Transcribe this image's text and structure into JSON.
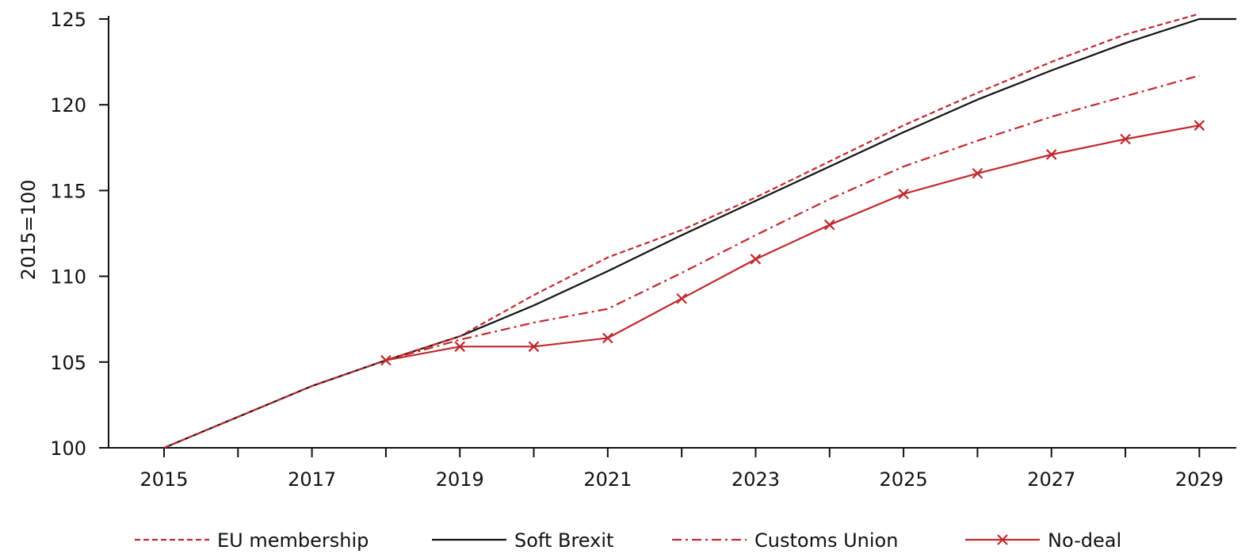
{
  "chart_data": {
    "type": "line",
    "title": "",
    "xlabel": "",
    "ylabel": "2015=100",
    "x_ticks": [
      2015,
      2017,
      2019,
      2021,
      2023,
      2025,
      2027,
      2029
    ],
    "x_tick_labels": [
      "2015",
      "2017",
      "2019",
      "2021",
      "2023",
      "2025",
      "2027",
      "2029"
    ],
    "y_ticks": [
      100,
      105,
      110,
      115,
      120,
      125
    ],
    "y_tick_labels": [
      "100",
      "105",
      "110",
      "115",
      "120",
      "125"
    ],
    "xlim": [
      2014.25,
      2029.5
    ],
    "ylim": [
      100,
      125
    ],
    "grid": false,
    "legend_position": "bottom",
    "series": [
      {
        "name": "EU membership",
        "color": "#c0282d",
        "style": "dashed",
        "x": [
          2015,
          2016,
          2017,
          2018,
          2019,
          2020,
          2021,
          2022,
          2023,
          2024,
          2025,
          2026,
          2027,
          2028,
          2029
        ],
        "values": [
          100.0,
          101.8,
          103.6,
          105.1,
          106.5,
          108.9,
          111.1,
          112.7,
          114.6,
          116.7,
          118.8,
          120.7,
          122.5,
          124.1,
          125.3
        ]
      },
      {
        "name": "Soft Brexit",
        "color": "#111111",
        "style": "solid",
        "x": [
          2015,
          2016,
          2017,
          2018,
          2019,
          2020,
          2021,
          2022,
          2023,
          2024,
          2025,
          2026,
          2027,
          2028,
          2029,
          2029.5
        ],
        "values": [
          100.0,
          101.8,
          103.6,
          105.1,
          106.5,
          108.3,
          110.3,
          112.4,
          114.4,
          116.4,
          118.4,
          120.3,
          122.0,
          123.6,
          125.0,
          125.0
        ]
      },
      {
        "name": "Customs Union",
        "color": "#c0282d",
        "style": "dashdot",
        "x": [
          2018,
          2019,
          2020,
          2021,
          2022,
          2023,
          2024,
          2025,
          2026,
          2027,
          2028,
          2029
        ],
        "values": [
          105.1,
          106.3,
          107.3,
          108.1,
          110.2,
          112.4,
          114.5,
          116.4,
          117.9,
          119.3,
          120.5,
          121.7
        ]
      },
      {
        "name": "No-deal",
        "color": "#c0282d",
        "style": "solid-x",
        "x": [
          2018,
          2019,
          2020,
          2021,
          2022,
          2023,
          2024,
          2025,
          2026,
          2027,
          2028,
          2029
        ],
        "values": [
          105.1,
          105.9,
          105.9,
          106.4,
          108.7,
          111.0,
          113.0,
          114.8,
          116.0,
          117.1,
          118.0,
          118.8
        ]
      }
    ]
  }
}
